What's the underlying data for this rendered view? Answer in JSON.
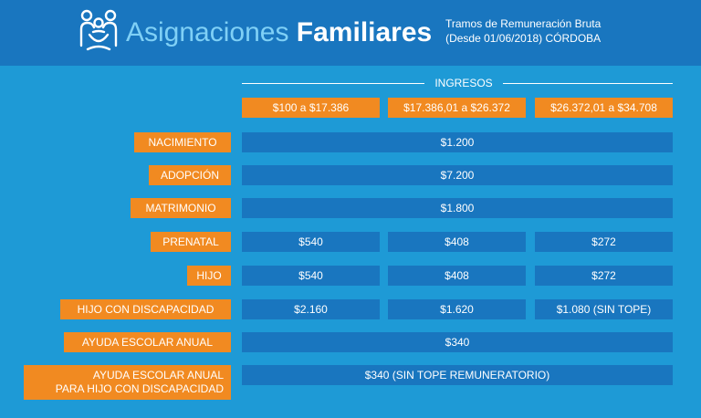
{
  "header": {
    "title_light": "Asignaciones",
    "title_bold": "Familiares",
    "subtitle_line1": "Tramos de Remuneración Bruta",
    "subtitle_line2": "(Desde 01/06/2018) CÓRDOBA",
    "logo_icon": "family-icon"
  },
  "ingresos_label": "INGRESOS",
  "ranges": [
    "$100 a $17.386",
    "$17.386,01 a $26.372",
    "$26.372,01 a $34.708"
  ],
  "rows": [
    {
      "label": "NACIMIENTO",
      "values": [
        "$1.200"
      ]
    },
    {
      "label": "ADOPCIÓN",
      "values": [
        "$7.200"
      ]
    },
    {
      "label": "MATRIMONIO",
      "values": [
        "$1.800"
      ]
    },
    {
      "label": "PRENATAL",
      "values": [
        "$540",
        "$408",
        "$272"
      ]
    },
    {
      "label": "HIJO",
      "values": [
        "$540",
        "$408",
        "$272"
      ]
    },
    {
      "label": "HIJO CON DISCAPACIDAD",
      "values": [
        "$2.160",
        "$1.620",
        "$1.080 (SIN TOPE)"
      ]
    },
    {
      "label": "AYUDA ESCOLAR ANUAL",
      "values": [
        "$340"
      ]
    },
    {
      "label_line1": "AYUDA ESCOLAR ANUAL",
      "label_line2": "PARA HIJO CON DISCAPACIDAD",
      "values": [
        "$340 (SIN TOPE REMUNERATORIO)"
      ]
    }
  ],
  "colors": {
    "background": "#1e9ad6",
    "header": "#1976bf",
    "accent": "#f18a21",
    "cell": "#1976bf"
  }
}
